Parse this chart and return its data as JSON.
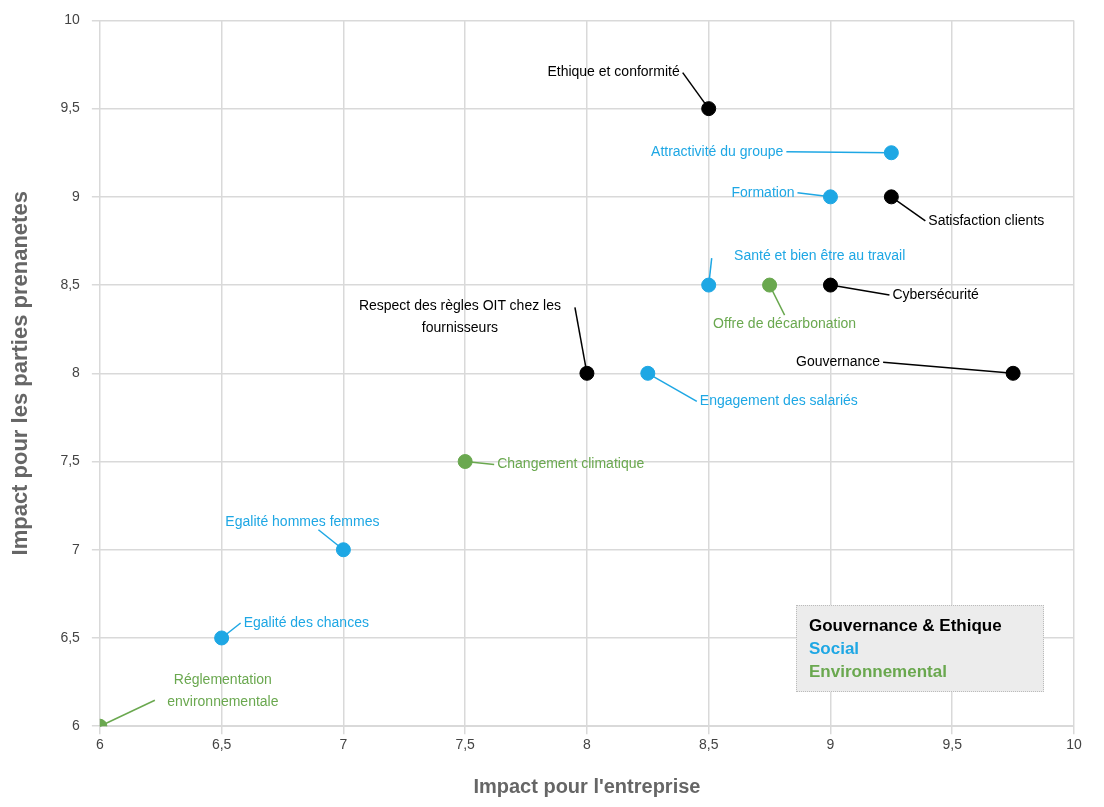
{
  "chart_data": {
    "type": "scatter",
    "xlabel": "Impact pour l'entreprise",
    "ylabel": "Impact pour les parties prenanetes",
    "xlim": [
      6,
      10
    ],
    "xticks": [
      6,
      {
        "value": 6.5,
        "label": "6,5"
      },
      7,
      {
        "value": 7.5,
        "label": "7,5"
      },
      8,
      {
        "value": 8.5,
        "label": "8,5"
      },
      9,
      {
        "value": 9.5,
        "label": "9,5"
      },
      10
    ],
    "ylim": [
      6,
      10
    ],
    "yticks": [
      6,
      {
        "value": 6.5,
        "label": "6,5"
      },
      7,
      {
        "value": 7.5,
        "label": "7,5"
      },
      8,
      {
        "value": 8.5,
        "label": "8,5"
      },
      9,
      {
        "value": 9.5,
        "label": "9,5"
      },
      10
    ],
    "grid": true,
    "legend": "bottom right",
    "marker": "circle",
    "series": [
      {
        "name": "Gouvernance & Ethique",
        "color": "#000000",
        "x": [
          8.5,
          9.25,
          9,
          8,
          9.75
        ],
        "values": [
          9.5,
          9,
          8.5,
          8,
          8
        ]
      },
      {
        "name": "Social",
        "color": "#1ea7e4",
        "x": [
          9.25,
          9,
          8.5,
          8.25,
          7,
          6.5
        ],
        "values": [
          9.25,
          9,
          8.5,
          8,
          7,
          6.5
        ]
      },
      {
        "name": "Environnemental",
        "color": "#6aa84f",
        "x": [
          8.75,
          7.5,
          6
        ],
        "values": [
          8.5,
          7.5,
          6
        ]
      }
    ],
    "annotations": [
      {
        "text": "Ethique et conformité",
        "x": 8.5,
        "y": 9.5
      },
      {
        "text": "Satisfaction clients",
        "x": 9.25,
        "y": 9
      },
      {
        "text": "Cybersécurité",
        "x": 9,
        "y": 8.5
      },
      {
        "text": "Respect des règles OIT chez les fournisseurs",
        "x": 8,
        "y": 8
      },
      {
        "text": "Gouvernance",
        "x": 9.75,
        "y": 8
      },
      {
        "text": "Attractivité du groupe",
        "x": 9.25,
        "y": 9.25
      },
      {
        "text": "Formation",
        "x": 9,
        "y": 9
      },
      {
        "text": "Santé et bien être au travail",
        "x": 8.5,
        "y": 8.5
      },
      {
        "text": "Engagement des salariés",
        "x": 8.25,
        "y": 8
      },
      {
        "text": "Egalité hommes femmes",
        "x": 7,
        "y": 7
      },
      {
        "text": "Egalité des chances",
        "x": 6.5,
        "y": 6.5
      },
      {
        "text": "Offre de décarbonation",
        "x": 8.75,
        "y": 8.5
      },
      {
        "text": "Changement climatique",
        "x": 7.5,
        "y": 7.5
      },
      {
        "text": "Réglementation environnementale",
        "x": 6,
        "y": 6
      }
    ]
  }
}
